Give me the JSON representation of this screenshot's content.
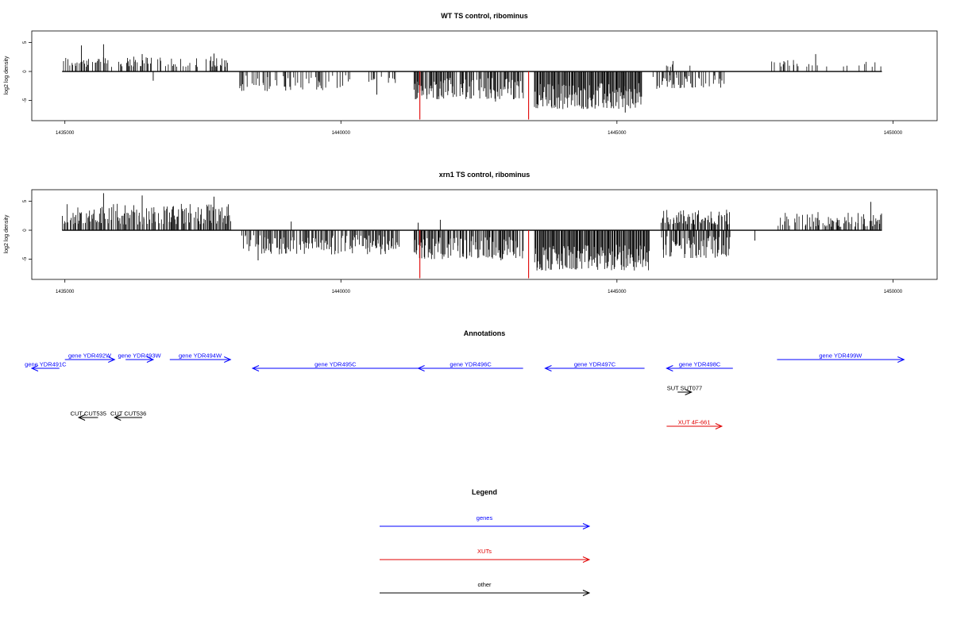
{
  "chart_data": [
    {
      "type": "bar",
      "title": "WT TS control, ribominus",
      "xlabel": "",
      "ylabel": "log2 log density",
      "xlim": [
        1434400,
        1450800
      ],
      "xticks": [
        1435000,
        1440000,
        1445000,
        1450000
      ],
      "ylim": [
        -8.5,
        7
      ],
      "yticks": [
        -5,
        0,
        5
      ],
      "series": [
        {
          "segments": [
            {
              "x0": 1434950,
              "x1": 1437950,
              "dense": 0.45,
              "min": 0.8,
              "max": 2.6
            },
            {
              "x0": 1438150,
              "x1": 1440150,
              "dense": 0.45,
              "min": -3.4,
              "max": -0.6
            },
            {
              "x0": 1440500,
              "x1": 1441050,
              "dense": 0.3,
              "min": -2.0,
              "max": -0.8
            },
            {
              "x0": 1441300,
              "x1": 1443300,
              "dense": 0.75,
              "min": -4.8,
              "max": -1.0
            },
            {
              "x0": 1443500,
              "x1": 1445450,
              "dense": 1.0,
              "min": -6.5,
              "max": -2.0
            },
            {
              "x0": 1445650,
              "x1": 1446950,
              "dense": 0.45,
              "min": -3.0,
              "max": -0.5
            },
            {
              "x0": 1445800,
              "x1": 1446400,
              "dense": 0.12,
              "min": 0.8,
              "max": 2.0
            },
            {
              "x0": 1447800,
              "x1": 1449800,
              "dense": 0.2,
              "min": 0.8,
              "max": 2.0
            }
          ],
          "spikes": [
            {
              "x": 1435300,
              "y": 4.5
            },
            {
              "x": 1435700,
              "y": 4.7
            },
            {
              "x": 1436400,
              "y": 3.0
            },
            {
              "x": 1437700,
              "y": 3.1
            },
            {
              "x": 1436600,
              "y": -1.6
            },
            {
              "x": 1439000,
              "y": -3.3
            },
            {
              "x": 1440650,
              "y": -4.0
            },
            {
              "x": 1442800,
              "y": -5.2
            },
            {
              "x": 1445150,
              "y": -7.1
            },
            {
              "x": 1448600,
              "y": 3.0
            }
          ],
          "color": "#000000"
        }
      ],
      "markers": [
        {
          "x": 1441430,
          "y": -8.3,
          "color": "#e00000"
        },
        {
          "x": 1443400,
          "y": -8.3,
          "color": "#e00000"
        }
      ]
    },
    {
      "type": "bar",
      "title": "xrn1 TS control, ribominus",
      "xlabel": "",
      "ylabel": "log2 log density",
      "xlim": [
        1434400,
        1450800
      ],
      "xticks": [
        1435000,
        1440000,
        1445000,
        1450000
      ],
      "ylim": [
        -8.5,
        7
      ],
      "yticks": [
        -5,
        0,
        5
      ],
      "series": [
        {
          "segments": [
            {
              "x0": 1434950,
              "x1": 1438000,
              "dense": 0.75,
              "min": 1.0,
              "max": 4.6
            },
            {
              "x0": 1438200,
              "x1": 1441050,
              "dense": 0.7,
              "min": -4.2,
              "max": -0.8
            },
            {
              "x0": 1441300,
              "x1": 1443300,
              "dense": 0.8,
              "min": -5.0,
              "max": -1.0
            },
            {
              "x0": 1443500,
              "x1": 1445600,
              "dense": 1.0,
              "min": -7.0,
              "max": -2.5
            },
            {
              "x0": 1445800,
              "x1": 1447050,
              "dense": 0.8,
              "min": 1.0,
              "max": 3.6
            },
            {
              "x0": 1445800,
              "x1": 1447050,
              "dense": 0.7,
              "min": -4.8,
              "max": -1.0
            },
            {
              "x0": 1447900,
              "x1": 1449800,
              "dense": 0.55,
              "min": 0.6,
              "max": 3.2
            }
          ],
          "spikes": [
            {
              "x": 1435700,
              "y": 6.4
            },
            {
              "x": 1436400,
              "y": 6.0
            },
            {
              "x": 1437700,
              "y": 5.8
            },
            {
              "x": 1438500,
              "y": -5.2
            },
            {
              "x": 1439100,
              "y": 1.5
            },
            {
              "x": 1441400,
              "y": 1.3
            },
            {
              "x": 1441800,
              "y": 1.8
            },
            {
              "x": 1442900,
              "y": -5.2
            },
            {
              "x": 1447500,
              "y": -1.8
            },
            {
              "x": 1449600,
              "y": 4.9
            }
          ],
          "color": "#000000"
        }
      ],
      "markers": [
        {
          "x": 1441430,
          "y": -8.3,
          "color": "#e00000"
        },
        {
          "x": 1443400,
          "y": -8.3,
          "color": "#e00000"
        }
      ]
    }
  ],
  "annotations": {
    "title": "Annotations",
    "features": [
      {
        "label": "gene YDR491C",
        "start": 1434900,
        "end": 1434400,
        "row": 1,
        "color": "#0000ff"
      },
      {
        "label": "gene YDR492W",
        "start": 1435000,
        "end": 1435900,
        "row": 0,
        "color": "#0000ff"
      },
      {
        "label": "gene YDR493W",
        "start": 1436100,
        "end": 1436600,
        "row": 0,
        "color": "#0000ff"
      },
      {
        "label": "gene YDR494W",
        "start": 1436900,
        "end": 1438000,
        "row": 0,
        "color": "#0000ff"
      },
      {
        "label": "gene YDR495C",
        "start": 1441400,
        "end": 1438400,
        "row": 1,
        "color": "#0000ff"
      },
      {
        "label": "gene YDR496C",
        "start": 1443300,
        "end": 1441400,
        "row": 1,
        "color": "#0000ff"
      },
      {
        "label": "gene YDR497C",
        "start": 1445500,
        "end": 1443700,
        "row": 1,
        "color": "#0000ff"
      },
      {
        "label": "gene YDR498C",
        "start": 1447100,
        "end": 1445900,
        "row": 1,
        "color": "#0000ff"
      },
      {
        "label": "gene YDR499W",
        "start": 1447900,
        "end": 1450200,
        "row": 0,
        "color": "#0000ff"
      },
      {
        "label": "SUT SUT077",
        "start": 1446100,
        "end": 1446350,
        "row": 2,
        "color": "#000000"
      },
      {
        "label": "XUT 4F-661",
        "start": 1445900,
        "end": 1446900,
        "row": 4,
        "color": "#e00000"
      },
      {
        "label": "CUT CUT536",
        "start": 1436400,
        "end": 1435900,
        "row": 3,
        "color": "#000000"
      },
      {
        "label": "CUT CUT535",
        "start": 1435600,
        "end": 1435250,
        "row": 3,
        "color": "#000000"
      }
    ]
  },
  "legend": {
    "title": "Legend",
    "items": [
      {
        "label": "genes",
        "color": "#0000ff"
      },
      {
        "label": "XUTs",
        "color": "#e00000"
      },
      {
        "label": "other",
        "color": "#000000"
      }
    ]
  }
}
